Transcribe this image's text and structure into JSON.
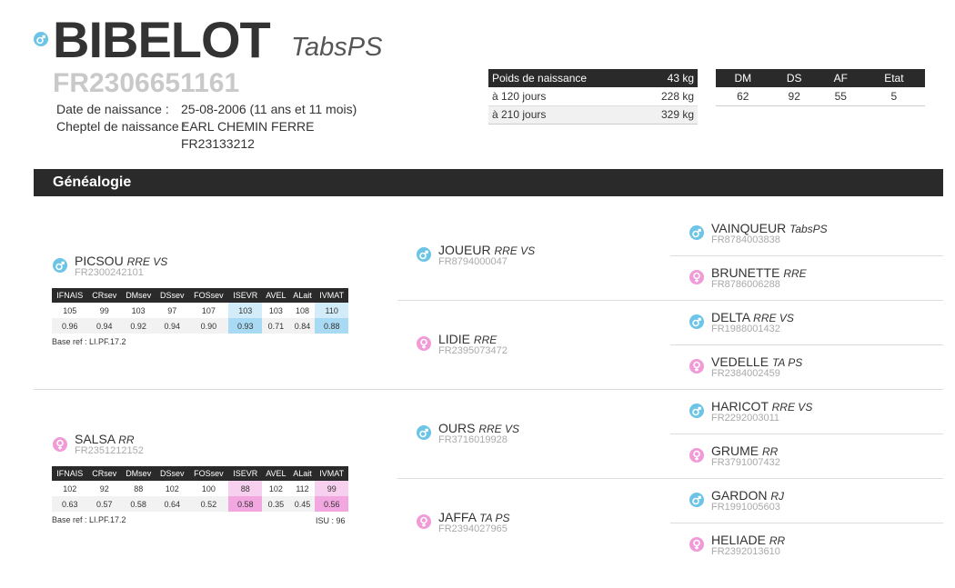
{
  "animal": {
    "name": "BIBELOT",
    "race": "TabsPS",
    "sex_icon": "male-icon",
    "id": "FR2306651161",
    "birth_label": "Date de naissance :",
    "birth_value": "25-08-2006 (11 ans et 11 mois)",
    "cheptel_label": "Cheptel de naissance :",
    "cheptel_name": "EARL CHEMIN FERRE",
    "cheptel_id": "FR23133212"
  },
  "weights": {
    "header_label": "Poids de naissance",
    "header_value": "43 kg",
    "rows": [
      {
        "label": "à 120 jours",
        "value": "228 kg"
      },
      {
        "label": "à 210 jours",
        "value": "329 kg"
      }
    ]
  },
  "scores": {
    "headers": [
      "DM",
      "DS",
      "AF",
      "Etat"
    ],
    "values": [
      "62",
      "92",
      "55",
      "5"
    ]
  },
  "section_title": "Généalogie",
  "index_headers": [
    "IFNAIS",
    "CRsev",
    "DMsev",
    "DSsev",
    "FOSsev",
    "ISEVR",
    "AVEL",
    "ALait",
    "IVMAT"
  ],
  "sire": {
    "name": "PICSOU",
    "race": "RRE VS",
    "id": "FR2300242101",
    "sex_icon": "male-icon",
    "row1": [
      "105",
      "99",
      "103",
      "97",
      "107",
      "103",
      "103",
      "108",
      "110"
    ],
    "row2": [
      "0.96",
      "0.94",
      "0.92",
      "0.94",
      "0.90",
      "0.93",
      "0.71",
      "0.84",
      "0.88"
    ],
    "base_ref": "Base ref : LI.PF.17.2",
    "isu": ""
  },
  "dam": {
    "name": "SALSA",
    "race": "RR",
    "id": "FR2351212152",
    "sex_icon": "female-icon",
    "row1": [
      "102",
      "92",
      "88",
      "102",
      "100",
      "88",
      "102",
      "112",
      "99"
    ],
    "row2": [
      "0.63",
      "0.57",
      "0.58",
      "0.64",
      "0.52",
      "0.58",
      "0.35",
      "0.45",
      "0.56"
    ],
    "base_ref": "Base ref : LI.PF.17.2",
    "isu": "ISU : 96"
  },
  "grandparents": [
    {
      "name": "JOUEUR",
      "race": "RRE VS",
      "id": "FR8794000047",
      "sex_icon": "male-icon"
    },
    {
      "name": "LIDIE",
      "race": "RRE",
      "id": "FR2395073472",
      "sex_icon": "female-icon"
    },
    {
      "name": "OURS",
      "race": "RRE VS",
      "id": "FR3716019928",
      "sex_icon": "male-icon"
    },
    {
      "name": "JAFFA",
      "race": "TA PS",
      "id": "FR2394027965",
      "sex_icon": "female-icon"
    }
  ],
  "great_grandparents": [
    {
      "name": "VAINQUEUR",
      "race": "TabsPS",
      "id": "FR8784003838",
      "sex_icon": "male-icon"
    },
    {
      "name": "BRUNETTE",
      "race": "RRE",
      "id": "FR8786006288",
      "sex_icon": "female-icon"
    },
    {
      "name": "DELTA",
      "race": "RRE VS",
      "id": "FR1988001432",
      "sex_icon": "male-icon"
    },
    {
      "name": "VEDELLE",
      "race": "TA PS",
      "id": "FR2384002459",
      "sex_icon": "female-icon"
    },
    {
      "name": "HARICOT",
      "race": "RRE VS",
      "id": "FR2292003011",
      "sex_icon": "male-icon"
    },
    {
      "name": "GRUME",
      "race": "RR",
      "id": "FR3791007432",
      "sex_icon": "female-icon"
    },
    {
      "name": "GARDON",
      "race": "RJ",
      "id": "FR1991005603",
      "sex_icon": "male-icon"
    },
    {
      "name": "HELIADE",
      "race": "RR",
      "id": "FR2392013610",
      "sex_icon": "female-icon"
    }
  ]
}
